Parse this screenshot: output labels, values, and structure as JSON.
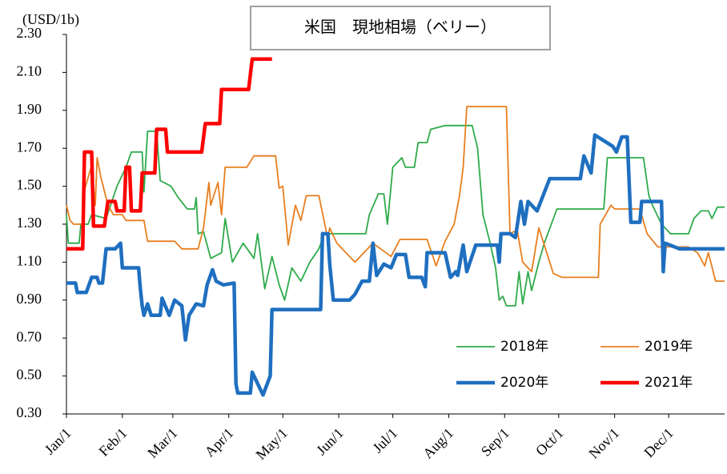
{
  "chart_data": {
    "type": "line",
    "title": "米国　現地相場（ベリー）",
    "y_label": "(USD/1b)",
    "xlim": [
      0,
      365
    ],
    "xticks": [
      {
        "value": 0,
        "label": "Jan/1"
      },
      {
        "value": 31,
        "label": "Feb/1"
      },
      {
        "value": 59,
        "label": "Mar/1"
      },
      {
        "value": 90,
        "label": "Apr/1"
      },
      {
        "value": 120,
        "label": "May/1"
      },
      {
        "value": 151,
        "label": "Jun/1"
      },
      {
        "value": 181,
        "label": "Jul/1"
      },
      {
        "value": 212,
        "label": "Aug/1"
      },
      {
        "value": 243,
        "label": "Sep/1"
      },
      {
        "value": 273,
        "label": "Oct/1"
      },
      {
        "value": 304,
        "label": "Nov/1"
      },
      {
        "value": 334,
        "label": "Dec/1"
      }
    ],
    "ylim": [
      0.3,
      2.3
    ],
    "yticks": [
      {
        "value": 0.3,
        "label": "0.30"
      },
      {
        "value": 0.5,
        "label": "0.50"
      },
      {
        "value": 0.7,
        "label": "0.70"
      },
      {
        "value": 0.9,
        "label": "0.90"
      },
      {
        "value": 1.1,
        "label": "1.10"
      },
      {
        "value": 1.3,
        "label": "1.30"
      },
      {
        "value": 1.5,
        "label": "1.50"
      },
      {
        "value": 1.7,
        "label": "1.70"
      },
      {
        "value": 1.9,
        "label": "1.90"
      },
      {
        "value": 2.1,
        "label": "2.10"
      },
      {
        "value": 2.3,
        "label": "2.30"
      }
    ],
    "grid": false,
    "legend_position": "lower right",
    "series": [
      {
        "name": "2018年",
        "color": "#2eab4a",
        "x": [
          0,
          1,
          7,
          8,
          12,
          14,
          22,
          28,
          33,
          36,
          42,
          43,
          45,
          50,
          52,
          58,
          62,
          67,
          71,
          72,
          73,
          76,
          80,
          86,
          88,
          92,
          98,
          104,
          106,
          110,
          114,
          118,
          121,
          125,
          130,
          135,
          140,
          143,
          166,
          168,
          173,
          176,
          178,
          181,
          186,
          188,
          193,
          195,
          200,
          202,
          210,
          225,
          228,
          231,
          235,
          238,
          240,
          242,
          244,
          249,
          251,
          253,
          256,
          258,
          262,
          265,
          272,
          298,
          300,
          320,
          323,
          325,
          330,
          335,
          345,
          348,
          352,
          356,
          358,
          361,
          365
        ],
        "values": [
          1.35,
          1.2,
          1.2,
          1.3,
          1.3,
          1.35,
          1.33,
          1.5,
          1.6,
          1.68,
          1.68,
          1.47,
          1.79,
          1.79,
          1.53,
          1.5,
          1.44,
          1.38,
          1.38,
          1.44,
          1.25,
          1.26,
          1.12,
          1.15,
          1.33,
          1.1,
          1.2,
          1.12,
          1.25,
          0.96,
          1.13,
          0.98,
          0.9,
          1.07,
          1.0,
          1.1,
          1.17,
          1.25,
          1.25,
          1.35,
          1.46,
          1.46,
          1.3,
          1.6,
          1.65,
          1.6,
          1.6,
          1.73,
          1.73,
          1.8,
          1.82,
          1.82,
          1.7,
          1.35,
          1.2,
          1.07,
          0.9,
          0.92,
          0.87,
          0.87,
          1.05,
          0.88,
          1.05,
          0.95,
          1.1,
          1.2,
          1.38,
          1.38,
          1.65,
          1.65,
          1.45,
          1.4,
          1.3,
          1.25,
          1.25,
          1.33,
          1.37,
          1.37,
          1.33,
          1.39,
          1.39
        ]
      },
      {
        "name": "2019年",
        "color": "#e87e1e",
        "x": [
          0,
          2,
          4,
          7,
          9,
          10,
          14,
          16,
          17,
          19,
          23,
          26,
          31,
          33,
          43,
          45,
          60,
          64,
          73,
          76,
          79,
          80,
          84,
          86,
          88,
          100,
          104,
          116,
          118,
          120,
          123,
          127,
          130,
          133,
          140,
          145,
          146,
          150,
          160,
          170,
          180,
          185,
          200,
          205,
          210,
          215,
          218,
          220,
          222,
          244,
          246,
          250,
          253,
          258,
          262,
          270,
          275,
          295,
          296,
          302,
          304,
          318,
          322,
          328,
          345,
          350,
          354,
          356,
          360,
          365
        ],
        "values": [
          1.4,
          1.32,
          1.3,
          1.3,
          1.3,
          1.48,
          1.61,
          1.4,
          1.65,
          1.55,
          1.4,
          1.35,
          1.35,
          1.32,
          1.32,
          1.21,
          1.21,
          1.17,
          1.17,
          1.28,
          1.52,
          1.4,
          1.52,
          1.35,
          1.6,
          1.6,
          1.66,
          1.66,
          1.49,
          1.5,
          1.19,
          1.4,
          1.32,
          1.45,
          1.45,
          1.22,
          1.28,
          1.2,
          1.1,
          1.2,
          1.13,
          1.22,
          1.22,
          1.08,
          1.21,
          1.3,
          1.45,
          1.6,
          1.92,
          1.92,
          1.25,
          1.27,
          1.1,
          1.05,
          1.28,
          1.04,
          1.02,
          1.02,
          1.3,
          1.4,
          1.38,
          1.38,
          1.25,
          1.18,
          1.18,
          1.15,
          1.08,
          1.15,
          1.0,
          1.0
        ]
      },
      {
        "name": "2020年",
        "color": "#1f6fc0",
        "x": [
          0,
          5,
          6,
          11,
          14,
          17,
          18,
          20,
          22,
          27,
          30,
          31,
          40,
          41,
          42,
          43,
          45,
          47,
          52,
          53,
          57,
          60,
          64,
          66,
          68,
          72,
          76,
          78,
          81,
          83,
          87,
          93,
          94,
          95,
          102,
          103,
          109,
          113,
          114,
          141,
          142,
          145,
          146,
          148,
          157,
          160,
          164,
          168,
          170,
          172,
          176,
          180,
          183,
          188,
          190,
          197,
          199,
          200,
          210,
          213,
          216,
          217,
          220,
          222,
          227,
          239,
          240,
          241,
          246,
          249,
          252,
          254,
          256,
          261,
          268,
          285,
          287,
          291,
          293,
          303,
          305,
          308,
          311,
          313,
          318,
          319,
          330,
          331,
          332,
          340,
          365
        ],
        "values": [
          0.99,
          0.99,
          0.94,
          0.94,
          1.02,
          1.02,
          0.99,
          0.99,
          1.17,
          1.17,
          1.2,
          1.07,
          1.07,
          0.96,
          0.87,
          0.82,
          0.88,
          0.82,
          0.82,
          0.91,
          0.82,
          0.9,
          0.87,
          0.69,
          0.82,
          0.88,
          0.87,
          0.98,
          1.06,
          1.0,
          0.98,
          0.99,
          0.46,
          0.41,
          0.41,
          0.52,
          0.4,
          0.5,
          0.85,
          0.85,
          1.25,
          1.25,
          1.09,
          0.9,
          0.9,
          0.93,
          1.0,
          1.0,
          1.2,
          1.03,
          1.09,
          1.07,
          1.14,
          1.14,
          1.02,
          1.02,
          0.97,
          1.15,
          1.15,
          1.02,
          1.05,
          1.03,
          1.19,
          1.05,
          1.19,
          1.19,
          1.1,
          1.25,
          1.25,
          1.23,
          1.42,
          1.3,
          1.42,
          1.37,
          1.54,
          1.54,
          1.66,
          1.57,
          1.77,
          1.71,
          1.68,
          1.76,
          1.76,
          1.31,
          1.31,
          1.42,
          1.42,
          1.05,
          1.2,
          1.17,
          1.17
        ]
      },
      {
        "name": "2021年",
        "color": "#ff0000",
        "x": [
          0,
          9,
          10,
          14,
          15,
          21,
          23,
          27,
          28,
          32,
          33,
          35,
          36,
          41,
          42,
          49,
          50,
          55,
          56,
          75,
          77,
          85,
          86,
          101,
          103,
          114
        ],
        "values": [
          1.17,
          1.17,
          1.68,
          1.68,
          1.29,
          1.29,
          1.42,
          1.42,
          1.37,
          1.37,
          1.6,
          1.6,
          1.37,
          1.37,
          1.57,
          1.57,
          1.8,
          1.8,
          1.68,
          1.68,
          1.83,
          1.83,
          2.01,
          2.01,
          2.17,
          2.17
        ]
      }
    ]
  }
}
